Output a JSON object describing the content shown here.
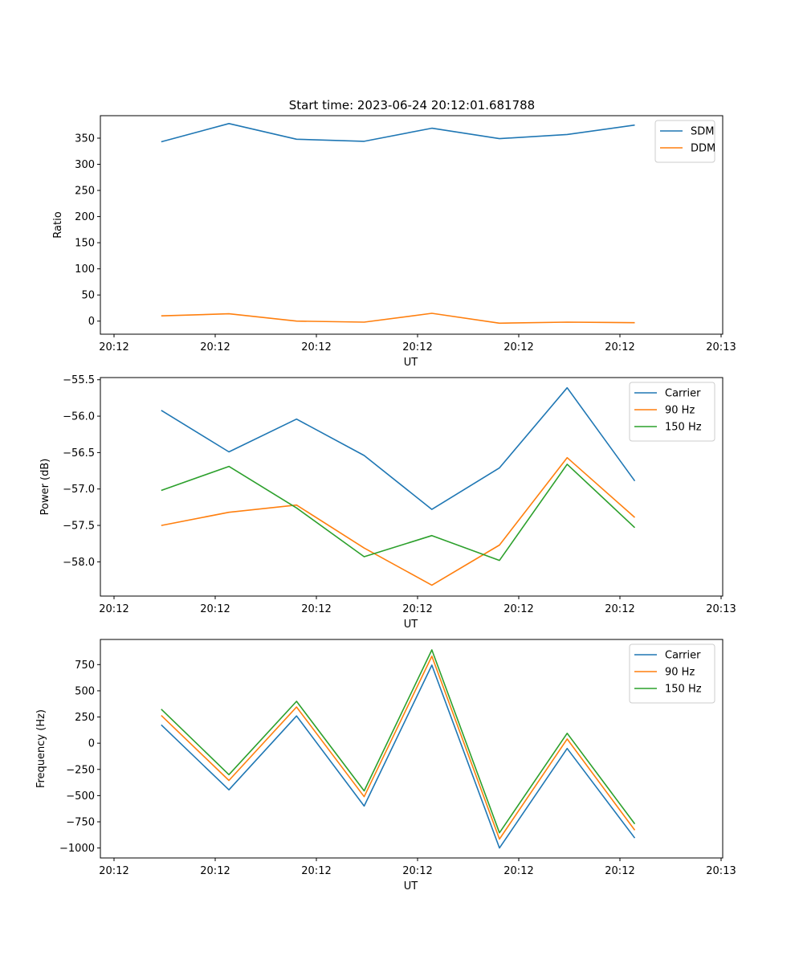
{
  "figure": {
    "title": "Start time: 2023-06-24 20:12:01.681788"
  },
  "chart_data": [
    {
      "type": "line",
      "title": "Start time: 2023-06-24 20:12:01.681788",
      "xlabel": "UT",
      "ylabel": "Ratio",
      "x_tick_labels": [
        "20:12",
        "20:12",
        "20:12",
        "20:12",
        "20:12",
        "20:12",
        "20:12",
        "20:13"
      ],
      "y_ticks": [
        0,
        50,
        100,
        150,
        200,
        250,
        300,
        350
      ],
      "ylim": [
        -25,
        393
      ],
      "x_index_range": [
        -0.9,
        8.3
      ],
      "x": [
        0,
        1,
        2,
        3,
        4,
        5,
        6,
        7
      ],
      "series": [
        {
          "name": "SDM",
          "color": "#1f77b4",
          "values": [
            343,
            378,
            348,
            344,
            369,
            349,
            357,
            375
          ]
        },
        {
          "name": "DDM",
          "color": "#ff7f0e",
          "values": [
            10,
            14,
            0,
            -2,
            15,
            -4,
            -2,
            -3
          ]
        }
      ],
      "legend": "top-right",
      "grid": false
    },
    {
      "type": "line",
      "xlabel": "UT",
      "ylabel": "Power (dB)",
      "x_tick_labels": [
        "20:12",
        "20:12",
        "20:12",
        "20:12",
        "20:12",
        "20:12",
        "20:12",
        "20:13"
      ],
      "y_ticks": [
        -58.0,
        -57.5,
        -57.0,
        -56.5,
        -56.0,
        -55.5
      ],
      "y_tick_labels": [
        "−58.0",
        "−57.5",
        "−57.0",
        "−56.5",
        "−56.0",
        "−55.5"
      ],
      "ylim": [
        -58.47,
        -55.47
      ],
      "x_index_range": [
        -0.9,
        8.3
      ],
      "x": [
        0,
        1,
        2,
        3,
        4,
        5,
        6,
        7
      ],
      "series": [
        {
          "name": "Carrier",
          "color": "#1f77b4",
          "values": [
            -55.92,
            -56.49,
            -56.04,
            -56.54,
            -57.28,
            -56.71,
            -55.61,
            -56.89
          ]
        },
        {
          "name": "90 Hz",
          "color": "#ff7f0e",
          "values": [
            -57.5,
            -57.32,
            -57.22,
            -57.81,
            -58.32,
            -57.77,
            -56.57,
            -57.39
          ]
        },
        {
          "name": "150 Hz",
          "color": "#2ca02c",
          "values": [
            -57.02,
            -56.69,
            -57.26,
            -57.93,
            -57.64,
            -57.98,
            -56.66,
            -57.53
          ]
        }
      ],
      "legend": "top-right",
      "grid": false
    },
    {
      "type": "line",
      "xlabel": "UT",
      "ylabel": "Frequency (Hz)",
      "x_tick_labels": [
        "20:12",
        "20:12",
        "20:12",
        "20:12",
        "20:12",
        "20:12",
        "20:12",
        "20:13"
      ],
      "y_ticks": [
        -1000,
        -750,
        -500,
        -250,
        0,
        250,
        500,
        750
      ],
      "y_tick_labels": [
        "−1000",
        "−750",
        "−500",
        "−250",
        "0",
        "250",
        "500",
        "750"
      ],
      "ylim": [
        -1095,
        990
      ],
      "x_index_range": [
        -0.9,
        8.3
      ],
      "x": [
        0,
        1,
        2,
        3,
        4,
        5,
        6,
        7
      ],
      "series": [
        {
          "name": "Carrier",
          "color": "#1f77b4",
          "values": [
            175,
            -445,
            260,
            -600,
            745,
            -1000,
            -50,
            -905
          ]
        },
        {
          "name": "90 Hz",
          "color": "#ff7f0e",
          "values": [
            265,
            -355,
            345,
            -510,
            830,
            -915,
            40,
            -830
          ]
        },
        {
          "name": "150 Hz",
          "color": "#2ca02c",
          "values": [
            325,
            -300,
            400,
            -455,
            890,
            -855,
            95,
            -770
          ]
        }
      ],
      "legend": "top-right",
      "grid": false
    }
  ]
}
